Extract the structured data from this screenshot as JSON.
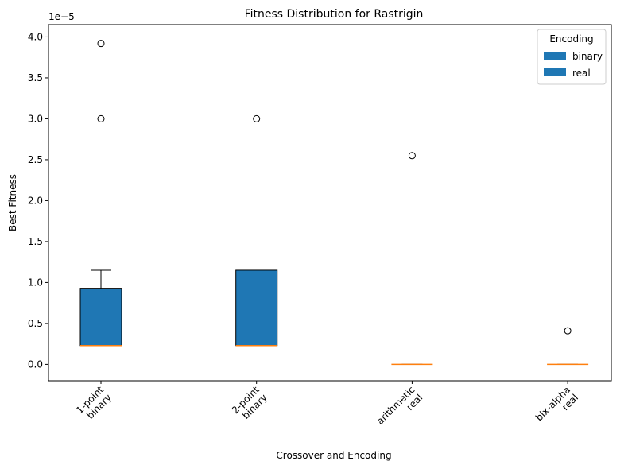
{
  "chart_data": {
    "type": "box",
    "title": "Fitness Distribution for Rastrigin",
    "xlabel": "Crossover and Encoding",
    "ylabel": "Best Fitness",
    "y_offset_label": "1e−5",
    "ylim": [
      -0.2,
      4.15
    ],
    "yticks": [
      0.0,
      0.5,
      1.0,
      1.5,
      2.0,
      2.5,
      3.0,
      3.5,
      4.0
    ],
    "ytick_labels": [
      "0.0",
      "0.5",
      "1.0",
      "1.5",
      "2.0",
      "2.5",
      "3.0",
      "3.5",
      "4.0"
    ],
    "categories": [
      {
        "line1": "1-point",
        "line2": "binary"
      },
      {
        "line1": "2-point",
        "line2": "binary"
      },
      {
        "line1": "arithmetic",
        "line2": "real"
      },
      {
        "line1": "blx-alpha",
        "line2": "real"
      }
    ],
    "boxes": [
      {
        "whisker_low": 0.23,
        "q1": 0.23,
        "median": 0.23,
        "q3": 0.93,
        "whisker_high": 1.15,
        "fliers": [
          3.0,
          3.92
        ],
        "encoding": "binary"
      },
      {
        "whisker_low": 0.23,
        "q1": 0.23,
        "median": 0.23,
        "q3": 1.15,
        "whisker_high": 1.15,
        "fliers": [
          3.0
        ],
        "encoding": "binary"
      },
      {
        "whisker_low": 0.0,
        "q1": 0.0,
        "median": 0.0,
        "q3": 0.0,
        "whisker_high": 0.0,
        "fliers": [
          2.55
        ],
        "encoding": "real"
      },
      {
        "whisker_low": 0.0,
        "q1": 0.0,
        "median": 0.0,
        "q3": 0.0,
        "whisker_high": 0.0,
        "fliers": [
          0.41
        ],
        "encoding": "real"
      }
    ],
    "legend": {
      "title": "Encoding",
      "placement": "top-right",
      "entries": [
        {
          "label": "binary",
          "color": "#1f77b4"
        },
        {
          "label": "real",
          "color": "#1f77b4"
        }
      ]
    },
    "colors": {
      "box_fill": "#1f77b4",
      "median": "#ff7f0e"
    }
  }
}
